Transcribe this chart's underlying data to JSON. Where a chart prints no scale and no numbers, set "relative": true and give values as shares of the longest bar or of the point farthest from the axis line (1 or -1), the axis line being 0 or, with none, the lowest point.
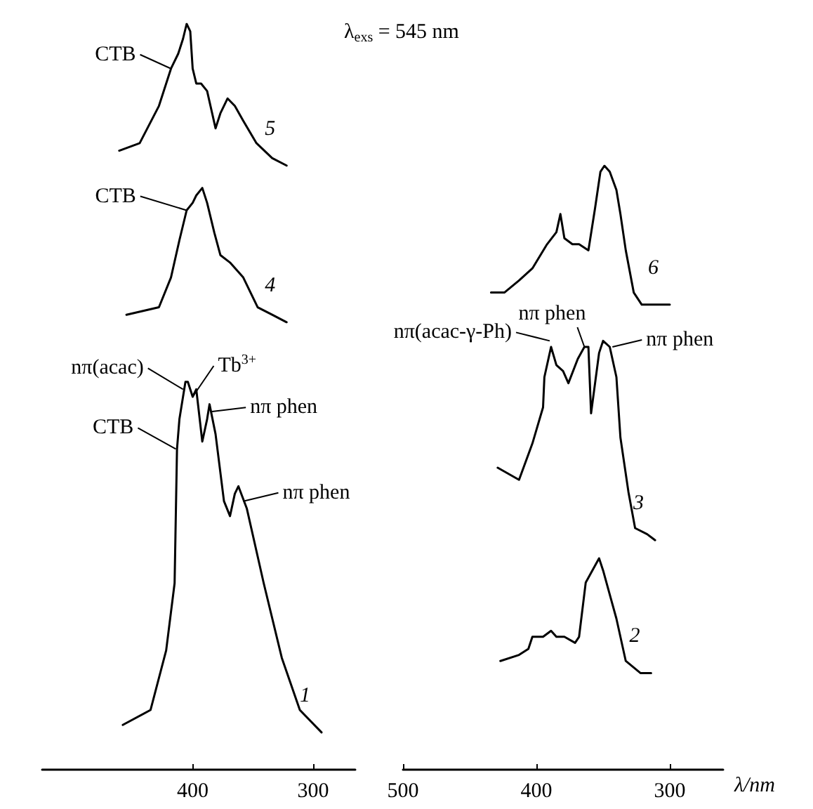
{
  "chart_data": [
    {
      "type": "line",
      "relative": true,
      "xlim": [
        525,
        265
      ],
      "xticks": [
        400,
        300
      ],
      "series": [
        {
          "name": "5",
          "color": "#000000",
          "x": [
            461,
            444,
            428,
            418,
            412,
            408,
            405,
            402,
            400,
            397,
            393,
            388,
            381,
            377,
            371,
            365,
            358,
            347,
            334,
            322
          ],
          "values": [
            0.83,
            0.84,
            0.89,
            0.94,
            0.96,
            0.98,
            1.0,
            0.99,
            0.94,
            0.92,
            0.92,
            0.91,
            0.86,
            0.88,
            0.9,
            0.89,
            0.87,
            0.84,
            0.82,
            0.81
          ]
        },
        {
          "name": "4",
          "color": "#000000",
          "x": [
            455,
            428,
            418,
            411,
            405,
            400,
            397,
            392,
            388,
            382,
            377,
            369,
            358,
            346,
            334,
            322
          ],
          "values": [
            0.61,
            0.62,
            0.66,
            0.71,
            0.75,
            0.76,
            0.77,
            0.78,
            0.76,
            0.72,
            0.69,
            0.68,
            0.66,
            0.62,
            0.61,
            0.6
          ]
        },
        {
          "name": "1",
          "color": "#000000",
          "x": [
            458,
            435,
            422,
            415,
            413,
            411,
            406,
            404,
            400,
            397,
            392,
            388,
            386,
            381,
            374,
            369,
            365,
            362,
            355,
            341,
            326,
            311,
            293
          ],
          "values": [
            0.06,
            0.08,
            0.16,
            0.25,
            0.43,
            0.47,
            0.52,
            0.52,
            0.5,
            0.51,
            0.44,
            0.47,
            0.49,
            0.45,
            0.36,
            0.34,
            0.37,
            0.38,
            0.35,
            0.25,
            0.15,
            0.08,
            0.05
          ]
        }
      ],
      "annotations": [
        {
          "text": "CTB",
          "x": 418,
          "y": 0.94
        },
        {
          "text": "CTB",
          "x": 405,
          "y": 0.75
        },
        {
          "text": "nπ(acac)",
          "x": 408,
          "y": 0.51
        },
        {
          "text": "Tb$^{3+}$",
          "x": 400,
          "y": 0.5
        },
        {
          "text": "CTB",
          "x": 414,
          "y": 0.43
        },
        {
          "text": "nπ phen",
          "x": 385,
          "y": 0.48
        },
        {
          "text": "nπ phen",
          "x": 358,
          "y": 0.36
        }
      ]
    },
    {
      "type": "line",
      "relative": true,
      "xlim": [
        500,
        260
      ],
      "xticks": [
        500,
        400,
        300
      ],
      "xlabel": "λ/nm",
      "series": [
        {
          "name": "6",
          "color": "#000000",
          "x": [
            434,
            424,
            413,
            403,
            392,
            385,
            382,
            379,
            373,
            368,
            361,
            356,
            352,
            349,
            345,
            340,
            337,
            333,
            327,
            321,
            312,
            300
          ],
          "values": [
            0.79,
            0.79,
            0.81,
            0.83,
            0.87,
            0.89,
            0.92,
            0.88,
            0.87,
            0.87,
            0.86,
            0.93,
            0.99,
            1.0,
            0.99,
            0.96,
            0.92,
            0.86,
            0.79,
            0.77,
            0.77,
            0.77
          ]
        },
        {
          "name": "3",
          "color": "#000000",
          "x": [
            429,
            413,
            403,
            395,
            394,
            389,
            385,
            380,
            376,
            369,
            364,
            361,
            359,
            353,
            350,
            345,
            340,
            337,
            331,
            326,
            317,
            311
          ],
          "values": [
            0.5,
            0.48,
            0.54,
            0.6,
            0.65,
            0.7,
            0.67,
            0.66,
            0.64,
            0.68,
            0.7,
            0.7,
            0.59,
            0.69,
            0.71,
            0.7,
            0.65,
            0.55,
            0.46,
            0.4,
            0.39,
            0.38
          ]
        },
        {
          "name": "2",
          "color": "#000000",
          "x": [
            427,
            413,
            406,
            403,
            395,
            389,
            385,
            379,
            371,
            368,
            363,
            358,
            353,
            350,
            345,
            340,
            333,
            322,
            314
          ],
          "values": [
            0.18,
            0.19,
            0.2,
            0.22,
            0.22,
            0.23,
            0.22,
            0.22,
            0.21,
            0.22,
            0.31,
            0.33,
            0.35,
            0.33,
            0.29,
            0.25,
            0.18,
            0.16,
            0.16
          ]
        }
      ],
      "annotations": [
        "λ$_{exs}$ = 545 nm",
        {
          "text": "nπ(acac-γ-Ph)",
          "x": 390,
          "y": 0.71
        },
        {
          "text": "nπ phen",
          "x": 364,
          "y": 0.7
        },
        {
          "text": "nπ phen",
          "x": 343,
          "y": 0.7
        }
      ]
    }
  ]
}
